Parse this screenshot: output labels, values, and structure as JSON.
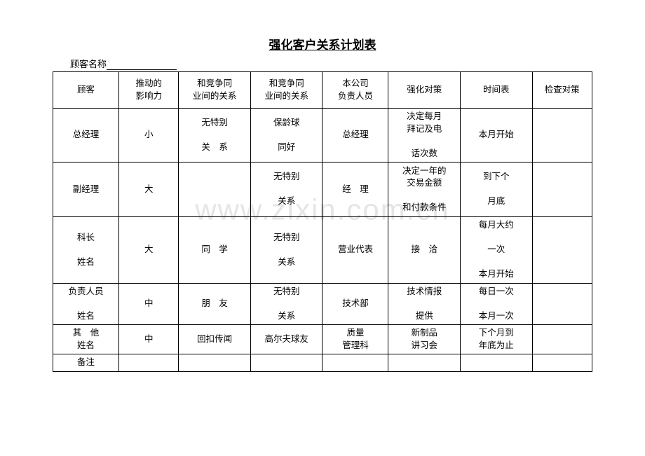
{
  "title": "强化客户关系计划表",
  "customerNameLabel": "顾客名称",
  "watermark": "www.zixin.com.cn",
  "table": {
    "headers": [
      "顾客",
      "推动的\n影响力",
      "和竞争同\n业间的关系",
      "和竞争同\n业间的关系",
      "本公司\n负责人员",
      "强化对策",
      "时间表",
      "检查对策"
    ],
    "rows": [
      {
        "class": "tall",
        "cells": [
          "总经理",
          "小",
          "无特别\n\n关　系",
          "保龄球\n\n同好",
          "总经理",
          "决定每月\n拜记及电\n\n话次数",
          "本月开始",
          ""
        ]
      },
      {
        "class": "med",
        "cells": [
          "副经理",
          "大",
          "",
          "无特别\n\n关系",
          "经　理",
          "决定一年的\n交易金额\n\n和付款条件",
          "到下个\n\n月底",
          ""
        ]
      },
      {
        "class": "med",
        "cells": [
          "科长\n\n姓名",
          "大",
          "同　学",
          "无特别\n\n关系",
          "营业代表",
          "接　洽",
          "每月大约\n\n一次\n\n本月开始",
          ""
        ]
      },
      {
        "class": "short",
        "cells": [
          "负责人员\n\n姓名",
          "中",
          "朋　友",
          "无特别\n\n关系",
          "技术部",
          "技术情报\n\n提供",
          "每日一次\n\n本月一次",
          ""
        ]
      },
      {
        "class": "vshort",
        "cells": [
          "其　他\n姓名",
          "中",
          "回扣传闻",
          "高尔夫球友",
          "质量\n管理科",
          "新制品\n讲习会",
          "下个月到\n年底为止",
          ""
        ]
      },
      {
        "class": "remark",
        "cells": [
          "备注",
          "",
          "",
          "",
          "",
          "",
          "",
          ""
        ]
      }
    ]
  }
}
